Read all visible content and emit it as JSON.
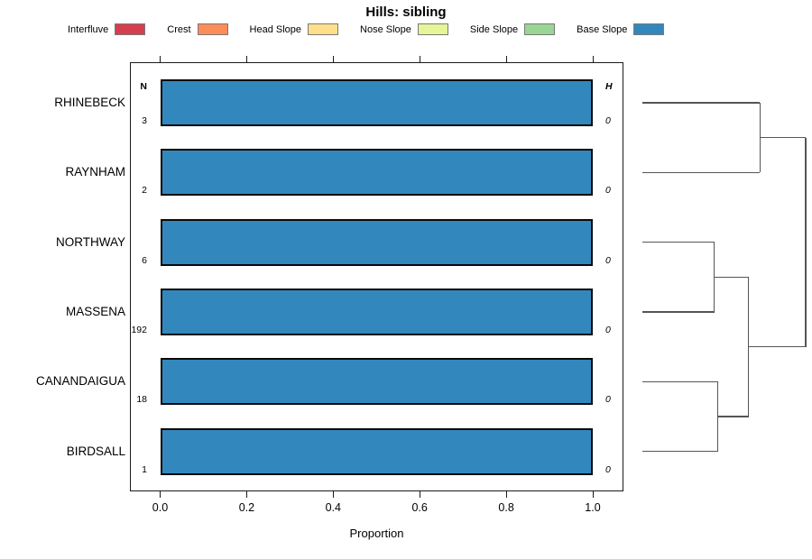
{
  "title": "Hills: sibling",
  "legend": {
    "items": [
      {
        "label": "Interfluve",
        "color": "#D53E4F"
      },
      {
        "label": "Crest",
        "color": "#FC8D59"
      },
      {
        "label": "Head Slope",
        "color": "#FEE08B"
      },
      {
        "label": "Nose Slope",
        "color": "#E6F598"
      },
      {
        "label": "Side Slope",
        "color": "#99D594"
      },
      {
        "label": "Base Slope",
        "color": "#3288BD"
      }
    ]
  },
  "chart_data": {
    "type": "bar",
    "subtype": "horizontal-stacked-proportion",
    "title": "Hills: sibling",
    "xlabel": "Proportion",
    "xlim": [
      0,
      1
    ],
    "xticks": [
      {
        "value": 0.0,
        "label": "0.0"
      },
      {
        "value": 0.2,
        "label": "0.2"
      },
      {
        "value": 0.4,
        "label": "0.4"
      },
      {
        "value": 0.6,
        "label": "0.6"
      },
      {
        "value": 0.8,
        "label": "0.8"
      },
      {
        "value": 1.0,
        "label": "1.0"
      }
    ],
    "grid": false,
    "legend_position": "top",
    "axis_color": "#1a1a1a",
    "dendrogram_line_color": "#555555",
    "categories": [
      "RHINEBECK",
      "RAYNHAM",
      "NORTHWAY",
      "MASSENA",
      "CANANDAIGUA",
      "BIRDSALL"
    ],
    "columns": {
      "n_header": "N",
      "h_header": "H"
    },
    "rows": [
      {
        "category": "RHINEBECK",
        "n": "3",
        "h": "0",
        "segments": [
          {
            "name": "Base Slope",
            "color": "#3288BD",
            "value": 1.0
          }
        ]
      },
      {
        "category": "RAYNHAM",
        "n": "2",
        "h": "0",
        "segments": [
          {
            "name": "Base Slope",
            "color": "#3288BD",
            "value": 1.0
          }
        ]
      },
      {
        "category": "NORTHWAY",
        "n": "6",
        "h": "0",
        "segments": [
          {
            "name": "Base Slope",
            "color": "#3288BD",
            "value": 1.0
          }
        ]
      },
      {
        "category": "MASSENA",
        "n": "192",
        "h": "0",
        "segments": [
          {
            "name": "Base Slope",
            "color": "#3288BD",
            "value": 1.0
          }
        ]
      },
      {
        "category": "CANANDAIGUA",
        "n": "18",
        "h": "0",
        "segments": [
          {
            "name": "Base Slope",
            "color": "#3288BD",
            "value": 1.0
          }
        ]
      },
      {
        "category": "BIRDSALL",
        "n": "1",
        "h": "0",
        "segments": [
          {
            "name": "Base Slope",
            "color": "#3288BD",
            "value": 1.0
          }
        ]
      }
    ],
    "dendrogram": {
      "leaves": [
        "RHINEBECK",
        "RAYNHAM",
        "NORTHWAY",
        "MASSENA",
        "CANANDAIGUA",
        "BIRDSALL"
      ],
      "merges": [
        {
          "id": "m1",
          "children": [
            "RHINEBECK",
            "RAYNHAM"
          ],
          "height": 0.72
        },
        {
          "id": "m2",
          "children": [
            "NORTHWAY",
            "MASSENA"
          ],
          "height": 0.44
        },
        {
          "id": "m3",
          "children": [
            "CANANDAIGUA",
            "BIRDSALL"
          ],
          "height": 0.46
        },
        {
          "id": "m4",
          "children": [
            "m2",
            "m3"
          ],
          "height": 0.65
        },
        {
          "id": "m5",
          "children": [
            "m1",
            "m4"
          ],
          "height": 1.0
        }
      ]
    }
  }
}
